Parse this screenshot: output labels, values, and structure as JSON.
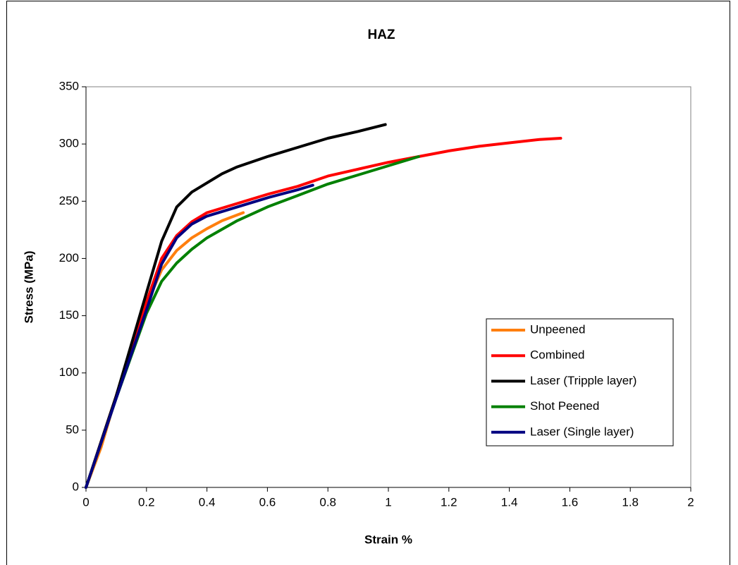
{
  "chart_data": {
    "type": "line",
    "title": "HAZ",
    "x_label": "Strain %",
    "y_label": "Stress (MPa)",
    "xlim": [
      0,
      2
    ],
    "xticks": [
      0,
      0.2,
      0.4,
      0.6,
      0.8,
      1,
      1.2,
      1.4,
      1.6,
      1.8,
      2
    ],
    "ylim": [
      0,
      350
    ],
    "yticks": [
      0,
      50,
      100,
      150,
      200,
      250,
      300,
      350
    ],
    "grid": false,
    "legend": "right",
    "series": [
      {
        "name": "Unpeened",
        "color": "#ff7f0e",
        "x": [
          0,
          0.05,
          0.1,
          0.15,
          0.2,
          0.25,
          0.3,
          0.35,
          0.4,
          0.45,
          0.5,
          0.52
        ],
        "values": [
          0,
          35,
          80,
          122,
          160,
          190,
          207,
          218,
          226,
          233,
          238,
          240
        ]
      },
      {
        "name": "Combined",
        "color": "#ff0000",
        "x": [
          0,
          0.1,
          0.2,
          0.25,
          0.3,
          0.35,
          0.4,
          0.5,
          0.6,
          0.7,
          0.8,
          0.9,
          1.0,
          1.1,
          1.2,
          1.3,
          1.4,
          1.5,
          1.57
        ],
        "values": [
          0,
          80,
          162,
          200,
          220,
          232,
          240,
          248,
          256,
          263,
          272,
          278,
          284,
          289,
          294,
          298,
          301,
          304,
          305
        ]
      },
      {
        "name": "Laser (Tripple layer)",
        "color": "#000000",
        "x": [
          0,
          0.1,
          0.2,
          0.25,
          0.3,
          0.35,
          0.4,
          0.45,
          0.5,
          0.6,
          0.7,
          0.8,
          0.9,
          0.99
        ],
        "values": [
          0,
          80,
          170,
          215,
          245,
          258,
          266,
          274,
          280,
          289,
          297,
          305,
          311,
          317
        ]
      },
      {
        "name": "Shot Peened",
        "color": "#008000",
        "x": [
          0,
          0.1,
          0.2,
          0.25,
          0.3,
          0.35,
          0.4,
          0.5,
          0.6,
          0.7,
          0.8,
          0.9,
          1.0,
          1.1
        ],
        "values": [
          0,
          78,
          152,
          180,
          196,
          208,
          218,
          233,
          245,
          255,
          265,
          273,
          281,
          289
        ]
      },
      {
        "name": "Laser (Single layer)",
        "color": "#000080",
        "x": [
          0,
          0.1,
          0.2,
          0.25,
          0.3,
          0.35,
          0.4,
          0.5,
          0.6,
          0.7,
          0.75
        ],
        "values": [
          0,
          78,
          155,
          195,
          218,
          230,
          237,
          245,
          253,
          260,
          264
        ]
      }
    ]
  }
}
